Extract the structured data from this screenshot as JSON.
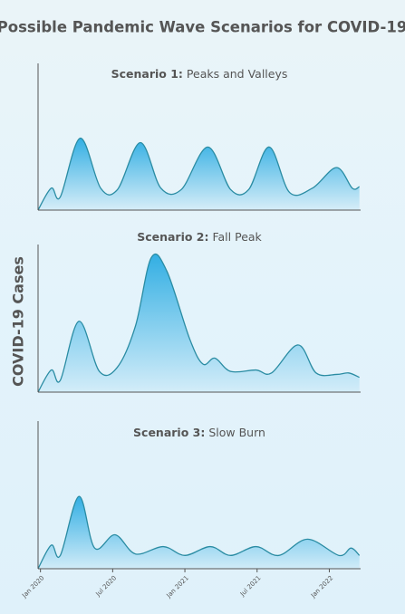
{
  "title": "Possible Pandemic Wave Scenarios for COVID-19",
  "ylabel": "COVID-19 Cases",
  "chart_data": [
    {
      "type": "area",
      "label": "Scenario 1:",
      "title": "Peaks and Valleys",
      "color": "#29abe2",
      "line_color": "#2a8ca3",
      "xlim": [
        -0.2,
        26.6
      ],
      "ylim": [
        0,
        100
      ],
      "x": [
        -0.2,
        0.9,
        1.65,
        3.3,
        5,
        6.4,
        8.3,
        10,
        11.7,
        13.9,
        15.8,
        17.3,
        19,
        20.7,
        22.6,
        24.6,
        25.9,
        26.5
      ],
      "values": [
        0,
        15,
        9,
        49,
        15,
        14,
        46,
        15,
        14,
        43,
        14,
        14,
        43,
        12,
        15,
        29,
        15,
        16
      ]
    },
    {
      "type": "area",
      "label": "Scenario 2:",
      "title": "Fall Peak",
      "color": "#29abe2",
      "line_color": "#2a8ca3",
      "xlim": [
        -0.2,
        26.6
      ],
      "ylim": [
        0,
        100
      ],
      "x": [
        -0.2,
        0.9,
        1.65,
        3.2,
        4.9,
        6.4,
        7.9,
        9.2,
        10.5,
        12.4,
        13.5,
        14.5,
        15.8,
        17.9,
        19.2,
        21.4,
        22.9,
        24.6,
        25.6,
        26.5
      ],
      "values": [
        0,
        15,
        8,
        48,
        14,
        17,
        45,
        91,
        82,
        36,
        19,
        23,
        14,
        15,
        13,
        32,
        13,
        12,
        13,
        10
      ]
    },
    {
      "type": "area",
      "label": "Scenario 3:",
      "title": "Slow Burn",
      "color": "#29abe2",
      "line_color": "#2a8ca3",
      "xlim": [
        -0.2,
        26.6
      ],
      "ylim": [
        0,
        100
      ],
      "x": [
        -0.2,
        0.9,
        1.65,
        3.2,
        4.5,
        6.2,
        7.9,
        10.2,
        12,
        14.1,
        15.8,
        17.9,
        19.8,
        22.2,
        24.8,
        25.8,
        26.5
      ],
      "values": [
        0,
        16,
        9,
        49,
        14,
        23,
        10,
        15,
        9,
        15,
        9,
        15,
        9,
        20,
        9,
        14,
        9
      ],
      "xticks": [
        {
          "value": 0,
          "label": "Jan 2020"
        },
        {
          "value": 6,
          "label": "Jul 2020"
        },
        {
          "value": 12,
          "label": "Jan 2021"
        },
        {
          "value": 18,
          "label": "Jul 2021"
        },
        {
          "value": 24,
          "label": "Jan 2022"
        }
      ]
    }
  ]
}
